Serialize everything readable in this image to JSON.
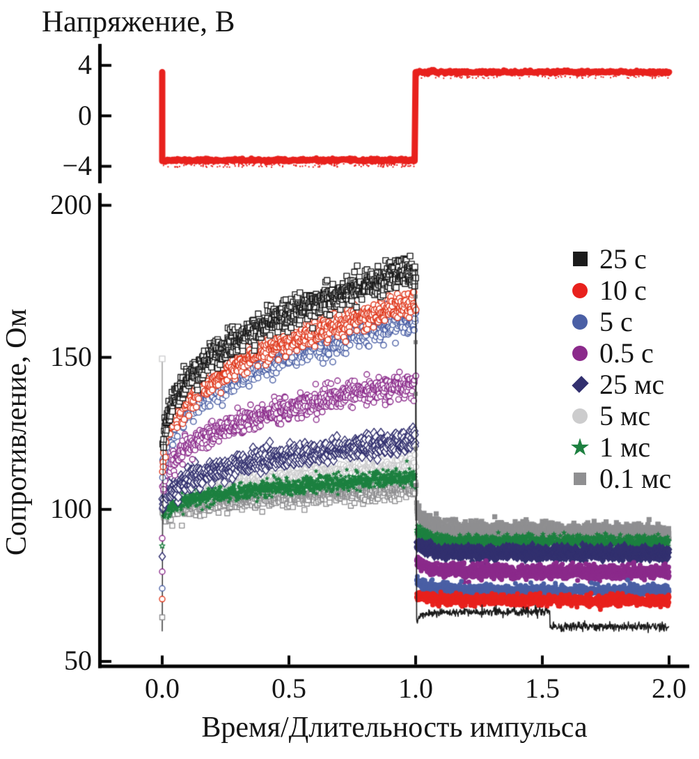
{
  "chart_data": [
    {
      "type": "line",
      "title": "Напряжение, В",
      "xlabel": "",
      "ylabel": "",
      "yticks": [
        4,
        0,
        -4
      ],
      "ytick_labels": [
        "4",
        "0",
        "−4"
      ],
      "ylim": [
        -5.5,
        5.5
      ],
      "grid": false,
      "series": [
        {
          "name": "voltage-pulse",
          "color": "#e8211d",
          "line_width": 9,
          "high_v": 3.47,
          "low_v": -3.52,
          "t_down": 0.0,
          "t_up": 1.0,
          "t_end": 2.0,
          "noise": 0.055
        }
      ]
    },
    {
      "type": "scatter",
      "xlabel": "Время/Длительность импульса",
      "ylabel": "Сопротивление, Ом",
      "xticks": [
        0.0,
        0.5,
        1.0,
        1.5,
        2.0
      ],
      "xtick_labels": [
        "0.0",
        "0.5",
        "1.0",
        "1.5",
        "2.0"
      ],
      "yticks": [
        200,
        150,
        100,
        50
      ],
      "ytick_labels": [
        "200",
        "150",
        "100",
        "50"
      ],
      "xlim": [
        -0.25,
        2.08
      ],
      "ylim": [
        48,
        204
      ],
      "grid": false,
      "legend_position": "right",
      "rise": {
        "w": 0.55,
        "p1": 0.12,
        "p2": 0.5
      },
      "series": [
        {
          "label": "25 с",
          "legend_marker": "square",
          "color": "#1b1b1b",
          "pre": {
            "v0": 96,
            "v1": 179,
            "noise": 2.3,
            "n": 850,
            "marker": "square",
            "size": 4.0,
            "open": true,
            "line": true
          },
          "post": {
            "type": "line",
            "v": 66.2,
            "v2": 61.4,
            "step_t": 1.53,
            "amp": -2.8,
            "tau": 0.035,
            "slope": 0.5,
            "noise": 0.7
          }
        },
        {
          "label": "10 с",
          "legend_marker": "circle",
          "color": "#e8211d",
          "color_pre": "#e0391d",
          "pre": {
            "v0": 95,
            "v1": 168,
            "noise": 2.3,
            "n": 700,
            "marker": "circle",
            "size": 4.2,
            "open": true
          },
          "post": {
            "type": "band",
            "v": 70.2,
            "amp": 2.0,
            "tau": 0.04,
            "slope": -0.2,
            "noise": 0.85,
            "n": 1100,
            "marker": "circle",
            "size": 3.5
          }
        },
        {
          "label": "5 с",
          "legend_marker": "circle",
          "color": "#4a5fa5",
          "pre": {
            "v0": 95,
            "v1": 163,
            "noise": 2.6,
            "n": 850,
            "marker": "circle",
            "size": 4.2,
            "open": true
          },
          "post": {
            "type": "band",
            "v": 73.5,
            "amp": 3.0,
            "tau": 0.05,
            "slope": -0.3,
            "noise": 0.9,
            "n": 1100,
            "marker": "circle",
            "size": 3.5
          }
        },
        {
          "label": "0.5 с",
          "legend_marker": "circle",
          "color": "#8b2a8b",
          "pre": {
            "v0": 94,
            "v1": 141.5,
            "noise": 2.0,
            "n": 750,
            "marker": "circle",
            "size": 4.0,
            "open": true
          },
          "post": {
            "type": "band",
            "v": 79.6,
            "amp": 3.5,
            "tau": 0.05,
            "slope": -0.3,
            "noise": 1.1,
            "n": 1100,
            "marker": "circle",
            "size": 3.6
          }
        },
        {
          "label": "25 мс",
          "legend_marker": "diamond",
          "color": "#32306f",
          "pre": {
            "v0": 93.5,
            "v1": 122.5,
            "noise": 1.7,
            "n": 700,
            "marker": "diamond",
            "size": 5.2,
            "open": true
          },
          "post": {
            "type": "band",
            "v": 85.8,
            "amp": 3.5,
            "tau": 0.04,
            "slope": -0.3,
            "noise": 1.0,
            "n": 1100,
            "marker": "diamond",
            "size": 4.6
          }
        },
        {
          "label": "5 мс",
          "legend_marker": "circle",
          "color": "#cccccd",
          "pre": {
            "v0": 94.5,
            "v1": 114.5,
            "noise": 1.7,
            "n": 700,
            "marker": "circle",
            "size": 4.0,
            "open": true
          },
          "post": {
            "type": "band",
            "v": 88.0,
            "amp": 4.0,
            "tau": 0.04,
            "slope": -0.3,
            "noise": 0.8,
            "n": 650,
            "marker": "circle",
            "size": 3.2
          }
        },
        {
          "label": "1 мс",
          "legend_marker": "star",
          "color": "#1d8040",
          "pre": {
            "v0": 93,
            "v1": 110.5,
            "noise": 1.4,
            "n": 1100,
            "marker": "star",
            "size": 3.8,
            "open": false
          },
          "post": {
            "type": "band",
            "v": 89.6,
            "amp": 4.0,
            "tau": 0.04,
            "slope": -0.3,
            "noise": 1.0,
            "n": 1200,
            "marker": "star",
            "size": 4.4
          }
        },
        {
          "label": "0.1 мс",
          "legend_marker": "square-small",
          "color": "#8f8f91",
          "pre": {
            "v0": 94,
            "v1": 106.5,
            "noise": 1.7,
            "n": 700,
            "marker": "square",
            "size": 3.5,
            "open": true
          },
          "post": {
            "type": "band",
            "v": 93.6,
            "amp": 6.5,
            "tau": 0.045,
            "slope": -1.3,
            "noise": 1.35,
            "n": 1200,
            "marker": "square",
            "size": 3.6
          }
        }
      ],
      "artifacts": {
        "start_spike": {
          "t": 0.0,
          "v_min": 60,
          "v_max": 150,
          "markers": [
            {
              "marker": "square",
              "color": "#cccccd",
              "v": 149.5,
              "s": 4.0
            },
            {
              "marker": "square",
              "color": "#8f8f91",
              "v": 64.5,
              "s": 3.5
            },
            {
              "marker": "circle",
              "color": "#e0391d",
              "v": 70.5,
              "s": 4.0
            },
            {
              "marker": "circle",
              "color": "#4a5fa5",
              "v": 74.0,
              "s": 4.0
            },
            {
              "marker": "circle",
              "color": "#8b2a8b",
              "v": 79.5,
              "s": 4.0
            },
            {
              "marker": "circle",
              "color": "#8b2a8b",
              "v": 90.5,
              "s": 4.0
            },
            {
              "marker": "diamond",
              "color": "#32306f",
              "v": 84.5,
              "s": 4.6
            },
            {
              "marker": "star",
              "color": "#1d8040",
              "v": 88.0,
              "s": 4.0
            }
          ]
        },
        "transition_spike": {
          "t": 1.0,
          "v_min": 99,
          "v_max": 176,
          "markers": [
            {
              "marker": "square",
              "color": "#8f8f91",
              "v": 170,
              "s": 3.0
            },
            {
              "marker": "square",
              "color": "#8f8f91",
              "v": 155,
              "s": 3.0
            },
            {
              "marker": "square",
              "color": "#8f8f91",
              "v": 138,
              "s": 3.0
            },
            {
              "marker": "square",
              "color": "#8f8f91",
              "v": 120,
              "s": 3.0
            },
            {
              "marker": "square",
              "color": "#8f8f91",
              "v": 108,
              "s": 3.0
            }
          ]
        }
      }
    }
  ]
}
